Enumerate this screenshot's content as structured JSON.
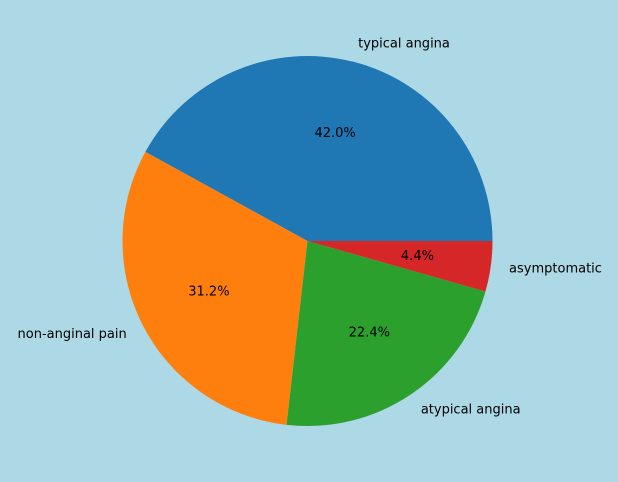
{
  "background_color": "#add8e6",
  "chart_data": {
    "type": "pie",
    "title": "",
    "start_angle_deg": 0,
    "direction": "counterclockwise",
    "slices": [
      {
        "label": "typical angina",
        "value": 42.0,
        "pct_text": "42.0%",
        "color": "#1f77b4"
      },
      {
        "label": "non-anginal pain",
        "value": 31.2,
        "pct_text": "31.2%",
        "color": "#ff7f0e"
      },
      {
        "label": "atypical angina",
        "value": 22.4,
        "pct_text": "22.4%",
        "color": "#2ca02c"
      },
      {
        "label": "asymptomatic",
        "value": 4.4,
        "pct_text": "4.4%",
        "color": "#d62728"
      }
    ]
  }
}
